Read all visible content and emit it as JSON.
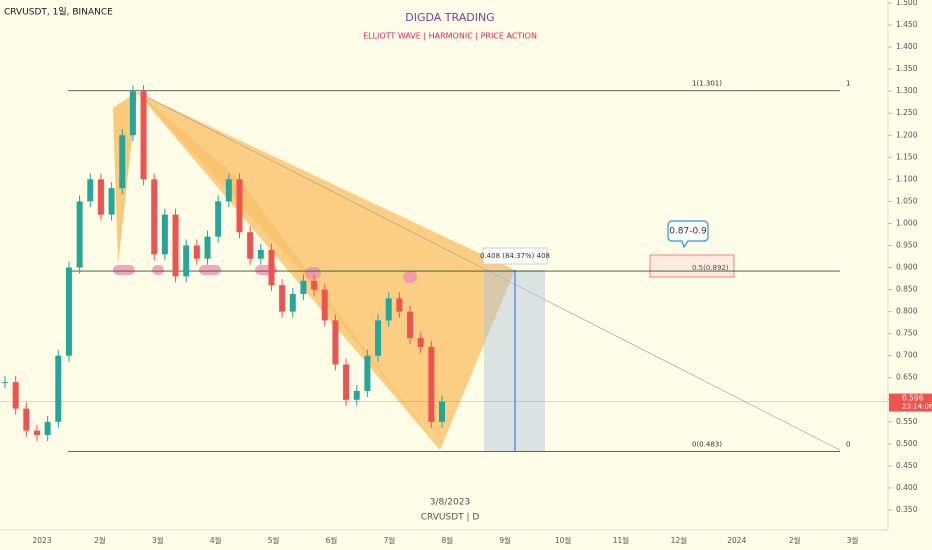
{
  "chart_data": {
    "type": "candlestick",
    "symbol_header": "CRVUSDT, 1일, BINANCE",
    "title": "DIGDA TRADING",
    "subtitle": "ELLIOTT WAVE  |  HARMONIC  |  PRICE ACTION",
    "watermark_date": "3/8/2023",
    "watermark_symbol": "CRVUSDT | D",
    "timer": "23:14:06",
    "callout": "0.87-0.9",
    "measure_label": "0.408 (84.37%) 408",
    "fib_levels": [
      {
        "label": "1(1.301)",
        "side": "1",
        "value": 1.301
      },
      {
        "label": "0.5(0.892)",
        "value": 0.892
      },
      {
        "label": "0(0.483)",
        "side": "0",
        "value": 0.483
      }
    ],
    "x_labels": [
      "2023",
      "2월",
      "3월",
      "4월",
      "5월",
      "6월",
      "7월",
      "8월",
      "9월",
      "10월",
      "11월",
      "12월",
      "2024",
      "2월",
      "3월"
    ],
    "values": [
      0.64,
      0.58,
      0.53,
      0.52,
      0.55,
      0.7,
      0.9,
      1.05,
      1.1,
      1.02,
      1.08,
      1.2,
      1.3,
      1.1,
      0.93,
      1.02,
      0.88,
      0.95,
      0.92,
      0.97,
      1.05,
      1.1,
      0.98,
      0.92,
      0.94,
      0.86,
      0.8,
      0.84,
      0.87,
      0.85,
      0.78,
      0.68,
      0.6,
      0.62,
      0.7,
      0.78,
      0.83,
      0.8,
      0.74,
      0.72,
      0.55,
      0.596
    ],
    "up_color": "#26a69a",
    "down_color": "#ef5350",
    "ylim": [
      0.35,
      1.5
    ],
    "yticks": [
      {
        "value": 1.5,
        "label": "1.500"
      },
      {
        "value": 1.45,
        "label": "1.450"
      },
      {
        "value": 1.4,
        "label": "1.400"
      },
      {
        "value": 1.35,
        "label": "1.350"
      },
      {
        "value": 1.3,
        "label": "1.300"
      },
      {
        "value": 1.25,
        "label": "1.250"
      },
      {
        "value": 1.2,
        "label": "1.200"
      },
      {
        "value": 1.15,
        "label": "1.150"
      },
      {
        "value": 1.1,
        "label": "1.100"
      },
      {
        "value": 1.05,
        "label": "1.050"
      },
      {
        "value": 1.0,
        "label": "1.000"
      },
      {
        "value": 0.95,
        "label": "0.950"
      },
      {
        "value": 0.9,
        "label": "0.900"
      },
      {
        "value": 0.85,
        "label": "0.850"
      },
      {
        "value": 0.8,
        "label": "0.800"
      },
      {
        "value": 0.75,
        "label": "0.750"
      },
      {
        "value": 0.7,
        "label": "0.700"
      },
      {
        "value": 0.65,
        "label": "0.650"
      },
      {
        "value": 0.6,
        "label": "0.600"
      },
      {
        "value": 0.55,
        "label": "0.550"
      },
      {
        "value": 0.5,
        "label": "0.500"
      },
      {
        "value": 0.45,
        "label": "0.450"
      },
      {
        "value": 0.4,
        "label": "0.400"
      },
      {
        "value": 0.35,
        "label": "0.350"
      }
    ]
  }
}
